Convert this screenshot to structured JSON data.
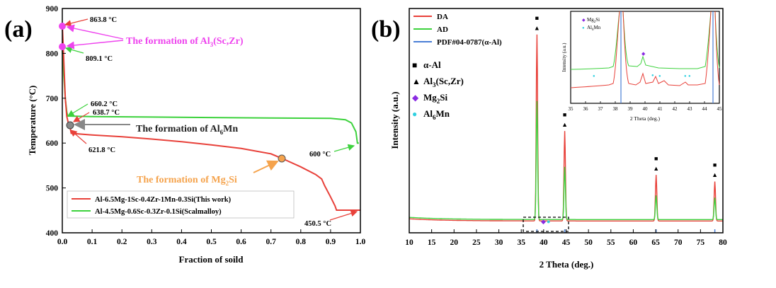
{
  "chart_data": [
    {
      "panel_label": "(a)",
      "type": "line",
      "xlabel": "Fraction of soild",
      "ylabel": "Temperature (°C)",
      "xlim": [
        0.0,
        1.0
      ],
      "ylim": [
        400,
        900
      ],
      "xticks": [
        "0.0",
        "0.1",
        "0.2",
        "0.3",
        "0.4",
        "0.5",
        "0.6",
        "0.7",
        "0.8",
        "0.9",
        "1.0"
      ],
      "yticks": [
        "400",
        "500",
        "600",
        "700",
        "800",
        "900"
      ],
      "colors": {
        "red": "#e8413a",
        "green": "#3dd23d",
        "magenta": "#ee44ee",
        "gray": "#888888",
        "orange": "#f5a34c"
      },
      "series": [
        {
          "name": "Al-6.5Mg-1Sc-0.4Zr-1Mn-0.3Si(This work)",
          "color": "#e8413a",
          "points": [
            [
              0.0,
              863.8
            ],
            [
              0.004,
              800
            ],
            [
              0.01,
              700
            ],
            [
              0.015,
              660
            ],
            [
              0.02,
              645
            ],
            [
              0.025,
              638.7
            ],
            [
              0.03,
              621.8
            ],
            [
              0.1,
              618
            ],
            [
              0.2,
              614
            ],
            [
              0.3,
              609
            ],
            [
              0.4,
              603
            ],
            [
              0.5,
              596
            ],
            [
              0.6,
              588
            ],
            [
              0.7,
              576
            ],
            [
              0.74,
              565
            ],
            [
              0.8,
              547
            ],
            [
              0.85,
              530
            ],
            [
              0.87,
              520
            ],
            [
              0.88,
              505
            ],
            [
              0.9,
              480
            ],
            [
              0.915,
              460
            ],
            [
              0.92,
              450.5
            ],
            [
              1.0,
              450.5
            ]
          ]
        },
        {
          "name": "Al-4.5Mg-0.6Sc-0.3Zr-0.1Si(Scalmalloy)",
          "color": "#3dd23d",
          "points": [
            [
              0.0,
              809.1
            ],
            [
              0.005,
              750
            ],
            [
              0.01,
              700
            ],
            [
              0.015,
              670
            ],
            [
              0.018,
              660.2
            ],
            [
              0.1,
              659
            ],
            [
              0.3,
              658
            ],
            [
              0.5,
              657
            ],
            [
              0.7,
              656
            ],
            [
              0.9,
              655
            ],
            [
              0.95,
              652
            ],
            [
              0.97,
              645
            ],
            [
              0.985,
              625
            ],
            [
              0.99,
              600
            ],
            [
              0.995,
              600
            ]
          ]
        }
      ],
      "markers": [
        {
          "label": "863.8 °C",
          "x": 0.0,
          "y": 863.8,
          "color": "#ee44ee"
        },
        {
          "label": "809.1 °C",
          "x": 0.0,
          "y": 809.1,
          "color": "#ee44ee"
        },
        {
          "label": "638.7 °C",
          "x": 0.025,
          "y": 638.7,
          "color": "#888888"
        },
        {
          "label": "Mg2Si",
          "x": 0.74,
          "y": 565,
          "color": "#f5a34c"
        }
      ],
      "annotations": {
        "t1": "863.8 °C",
        "t2": "809.1 °C",
        "t3": "660.2 °C",
        "t4": "638.7 °C",
        "t5": "621.8 °C",
        "t6": "600 °C",
        "t7": "450.5 °C",
        "formation_alsczr": "The formation of Al",
        "formation_alsczr_sub": "3",
        "formation_alsczr_tail": "(Sc,Zr)",
        "formation_al6mn": "The formation of Al",
        "formation_al6mn_sub": "6",
        "formation_al6mn_tail": "Mn",
        "formation_mg2si": "The formation of Mg",
        "formation_mg2si_sub": "2",
        "formation_mg2si_tail": "Si"
      },
      "legend": [
        "Al-6.5Mg-1Sc-0.4Zr-1Mn-0.3Si(This work)",
        "Al-4.5Mg-0.6Sc-0.3Zr-0.1Si(Scalmalloy)"
      ],
      "legend_position": "bottom-left"
    },
    {
      "panel_label": "(b)",
      "type": "line",
      "xlabel": "2 Theta (deg.)",
      "ylabel": "Intensity (a.u.)",
      "xlim": [
        10,
        80
      ],
      "xticks": [
        "10",
        "15",
        "20",
        "25",
        "30",
        "35",
        "40",
        "45",
        "50",
        "55",
        "60",
        "65",
        "70",
        "75",
        "80"
      ],
      "series": [
        {
          "name": "DA",
          "color": "#e8413a"
        },
        {
          "name": "AD",
          "color": "#3dd23d"
        },
        {
          "name": "PDF#04-0787(α-Al)",
          "color": "#4a7fd6"
        }
      ],
      "peaks": [
        {
          "x": 38.5,
          "DA": 0.85,
          "AD": 0.54
        },
        {
          "x": 44.7,
          "DA": 0.41,
          "AD": 0.24
        },
        {
          "x": 65.1,
          "DA": 0.21,
          "AD": 0.11
        },
        {
          "x": 78.2,
          "DA": 0.18,
          "AD": 0.1
        }
      ],
      "pdf_lines": [
        38.5,
        44.7,
        65.1,
        78.2
      ],
      "phase_markers": [
        {
          "x": 38.5,
          "phases": [
            "α-Al",
            "Al3(Sc,Zr)"
          ]
        },
        {
          "x": 44.7,
          "phases": [
            "α-Al",
            "Al3(Sc,Zr)"
          ]
        },
        {
          "x": 65.1,
          "phases": [
            "α-Al",
            "Al3(Sc,Zr)"
          ]
        },
        {
          "x": 78.2,
          "phases": [
            "α-Al",
            "Al3(Sc,Zr)"
          ]
        }
      ],
      "phase_legend": [
        {
          "symbol": "■",
          "label": "α-Al",
          "sub": "",
          "tail": "",
          "color": "#000000"
        },
        {
          "symbol": "▲",
          "label": "Al",
          "sub": "3",
          "tail": "(Sc,Zr)",
          "color": "#000000"
        },
        {
          "symbol": "◆",
          "label": "Mg",
          "sub": "2",
          "tail": "Si",
          "color": "#8a2be2"
        },
        {
          "symbol": "●",
          "label": "Al",
          "sub": "6",
          "tail": "Mn",
          "color": "#2fd0e0"
        }
      ],
      "inset": {
        "xlabel": "2 Theta (deg.)",
        "ylabel": "Intensity (a.u.)",
        "xlim": [
          35,
          45
        ],
        "xticks": [
          "35",
          "36",
          "37",
          "38",
          "39",
          "40",
          "41",
          "42",
          "43",
          "44",
          "45"
        ],
        "legend": [
          {
            "symbol": "◆",
            "label": "Mg",
            "sub": "2",
            "tail": "Si",
            "color": "#8a2be2"
          },
          {
            "symbol": "●",
            "label": "Al",
            "sub": "6",
            "tail": "Mn",
            "color": "#2fd0e0"
          }
        ]
      }
    }
  ]
}
